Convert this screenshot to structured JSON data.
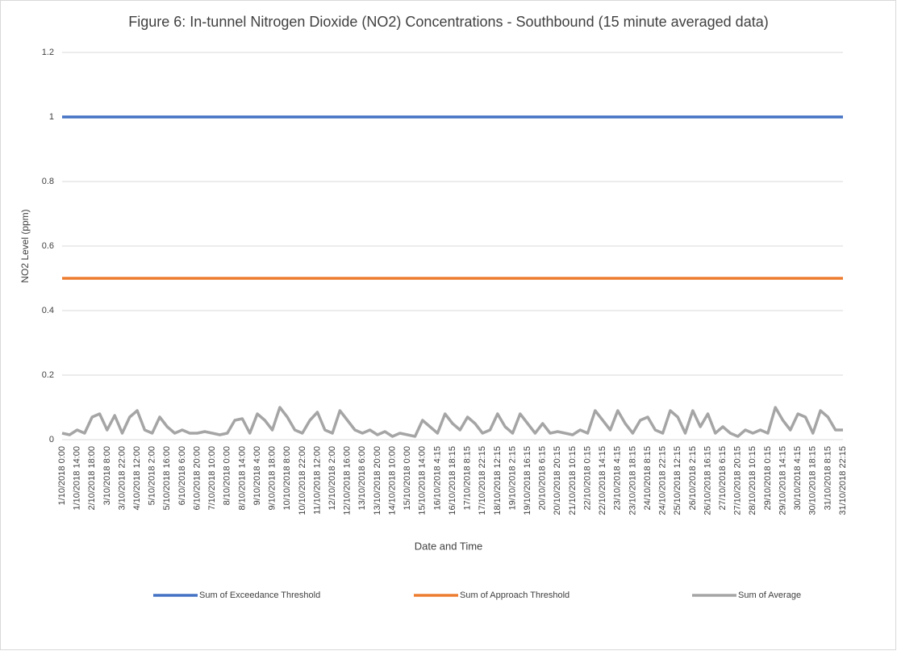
{
  "chart_data": {
    "type": "line",
    "title": "Figure 6:  In-tunnel Nitrogen Dioxide (NO2) Concentrations - Southbound (15 minute averaged data)",
    "xlabel": "Date and Time",
    "ylabel": "NO2 Level (ppm)",
    "categories": [
      "1/10/2018 0:00",
      null,
      "1/10/2018 14:00",
      null,
      "2/10/2018 18:00",
      null,
      "3/10/2018 8:00",
      null,
      "3/10/2018 22:00",
      null,
      "4/10/2018 12:00",
      null,
      "5/10/2018 2:00",
      null,
      "5/10/2018 16:00",
      null,
      "6/10/2018 6:00",
      null,
      "6/10/2018 20:00",
      null,
      "7/10/2018 10:00",
      null,
      "8/10/2018 0:00",
      null,
      "8/10/2018 14:00",
      null,
      "9/10/2018 4:00",
      null,
      "9/10/2018 18:00",
      null,
      "10/10/2018 8:00",
      null,
      "10/10/2018 22:00",
      null,
      "11/10/2018 12:00",
      null,
      "12/10/2018 2:00",
      null,
      "12/10/2018 16:00",
      null,
      "13/10/2018 6:00",
      null,
      "13/10/2018 20:00",
      null,
      "14/10/2018 10:00",
      null,
      "15/10/2018 0:00",
      null,
      "15/10/2018 14:00",
      null,
      "16/10/2018 4:15",
      null,
      "16/10/2018 18:15",
      null,
      "17/10/2018 8:15",
      null,
      "17/10/2018 22:15",
      null,
      "18/10/2018 12:15",
      null,
      "19/10/2018 2:15",
      null,
      "19/10/2018 16:15",
      null,
      "20/10/2018 6:15",
      null,
      "20/10/2018 20:15",
      null,
      "21/10/2018 10:15",
      null,
      "22/10/2018 0:15",
      null,
      "22/10/2018 14:15",
      null,
      "23/10/2018 4:15",
      null,
      "23/10/2018 18:15",
      null,
      "24/10/2018 8:15",
      null,
      "24/10/2018 22:15",
      null,
      "25/10/2018 12:15",
      null,
      "26/10/2018 2:15",
      null,
      "26/10/2018 16:15",
      null,
      "27/10/2018 6:15",
      null,
      "27/10/2018 20:15",
      null,
      "28/10/2018 10:15",
      null,
      "29/10/2018 0:15",
      null,
      "29/10/2018 14:15",
      null,
      "30/10/2018 4:15",
      null,
      "30/10/2018 18:15",
      null,
      "31/10/2018 8:15",
      null,
      "31/10/2018 22:15"
    ],
    "series": [
      {
        "name": "Sum of Exceedance Threshold",
        "color": "#4472c4",
        "values": [
          1,
          1,
          1,
          1,
          1,
          1,
          1,
          1,
          1,
          1,
          1,
          1,
          1,
          1,
          1,
          1,
          1,
          1,
          1,
          1,
          1,
          1,
          1,
          1,
          1,
          1,
          1,
          1,
          1,
          1,
          1,
          1,
          1,
          1,
          1,
          1,
          1,
          1,
          1,
          1,
          1,
          1,
          1,
          1,
          1,
          1,
          1,
          1,
          1,
          1,
          1,
          1,
          1,
          1,
          1,
          1,
          1,
          1,
          1,
          1,
          1,
          1,
          1,
          1,
          1,
          1,
          1,
          1,
          1,
          1,
          1,
          1,
          1,
          1,
          1,
          1,
          1,
          1,
          1,
          1,
          1,
          1,
          1,
          1,
          1,
          1,
          1,
          1,
          1,
          1,
          1,
          1,
          1,
          1,
          1,
          1,
          1,
          1,
          1,
          1,
          1,
          1,
          1,
          1,
          1
        ]
      },
      {
        "name": "Sum of Approach Threshold",
        "color": "#ed7d31",
        "values": [
          0.5,
          0.5,
          0.5,
          0.5,
          0.5,
          0.5,
          0.5,
          0.5,
          0.5,
          0.5,
          0.5,
          0.5,
          0.5,
          0.5,
          0.5,
          0.5,
          0.5,
          0.5,
          0.5,
          0.5,
          0.5,
          0.5,
          0.5,
          0.5,
          0.5,
          0.5,
          0.5,
          0.5,
          0.5,
          0.5,
          0.5,
          0.5,
          0.5,
          0.5,
          0.5,
          0.5,
          0.5,
          0.5,
          0.5,
          0.5,
          0.5,
          0.5,
          0.5,
          0.5,
          0.5,
          0.5,
          0.5,
          0.5,
          0.5,
          0.5,
          0.5,
          0.5,
          0.5,
          0.5,
          0.5,
          0.5,
          0.5,
          0.5,
          0.5,
          0.5,
          0.5,
          0.5,
          0.5,
          0.5,
          0.5,
          0.5,
          0.5,
          0.5,
          0.5,
          0.5,
          0.5,
          0.5,
          0.5,
          0.5,
          0.5,
          0.5,
          0.5,
          0.5,
          0.5,
          0.5,
          0.5,
          0.5,
          0.5,
          0.5,
          0.5,
          0.5,
          0.5,
          0.5,
          0.5,
          0.5,
          0.5,
          0.5,
          0.5,
          0.5,
          0.5,
          0.5,
          0.5,
          0.5,
          0.5,
          0.5,
          0.5,
          0.5,
          0.5,
          0.5,
          0.5
        ]
      },
      {
        "name": "Sum of Average",
        "color": "#a5a5a5",
        "values": [
          0.02,
          0.015,
          0.03,
          0.02,
          0.07,
          0.08,
          0.03,
          0.075,
          0.02,
          0.07,
          0.09,
          0.03,
          0.02,
          0.07,
          0.04,
          0.02,
          0.03,
          0.02,
          0.02,
          0.025,
          0.02,
          0.015,
          0.02,
          0.06,
          0.065,
          0.02,
          0.08,
          0.06,
          0.03,
          0.1,
          0.07,
          0.03,
          0.02,
          0.06,
          0.085,
          0.03,
          0.02,
          0.09,
          0.06,
          0.03,
          0.02,
          0.03,
          0.015,
          0.025,
          0.01,
          0.02,
          0.015,
          0.01,
          0.06,
          0.04,
          0.02,
          0.08,
          0.05,
          0.03,
          0.07,
          0.05,
          0.02,
          0.03,
          0.08,
          0.04,
          0.02,
          0.08,
          0.05,
          0.02,
          0.05,
          0.02,
          0.025,
          0.02,
          0.015,
          0.03,
          0.02,
          0.09,
          0.06,
          0.03,
          0.09,
          0.05,
          0.02,
          0.06,
          0.07,
          0.03,
          0.02,
          0.09,
          0.07,
          0.02,
          0.09,
          0.04,
          0.08,
          0.02,
          0.04,
          0.02,
          0.01,
          0.03,
          0.02,
          0.03,
          0.02,
          0.1,
          0.06,
          0.03,
          0.08,
          0.07,
          0.02,
          0.09,
          0.07,
          0.03,
          0.03
        ]
      }
    ],
    "ylim": [
      0,
      1.2
    ],
    "yticks": [
      0,
      0.2,
      0.4,
      0.6,
      0.8,
      1,
      1.2
    ],
    "grid": true,
    "legend": "bottom"
  }
}
